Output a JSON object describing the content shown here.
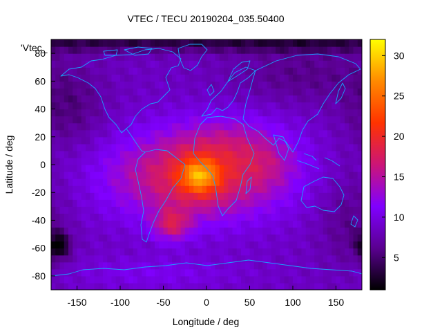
{
  "chart_data": {
    "type": "heatmap",
    "title": "VTEC / TECU 20190204_035.50400",
    "xlabel": "Longitude / deg",
    "ylabel": "Latitude / deg",
    "legend_label": "'Vtec_",
    "xlim": [
      -180,
      180
    ],
    "ylim": [
      -90,
      90
    ],
    "x_ticks": [
      -150,
      -100,
      -50,
      0,
      50,
      100,
      150
    ],
    "y_ticks": [
      -80,
      -60,
      -40,
      -20,
      0,
      20,
      40,
      60,
      80
    ],
    "colorbar": {
      "range": [
        1,
        32
      ],
      "ticks": [
        5,
        10,
        15,
        20,
        25,
        30
      ],
      "palette": [
        "#000000",
        "#5a0090",
        "#8000ff",
        "#cc1577",
        "#ff3300",
        "#ff8a00",
        "#ffff00"
      ]
    },
    "grid": false,
    "base_level": 8.5,
    "features": [
      {
        "lon": -10,
        "lat": -8,
        "sigma_lon": 70,
        "sigma_lat": 22,
        "amp": 10.5
      },
      {
        "lon": 30,
        "lat": 18,
        "sigma_lon": 45,
        "sigma_lat": 14,
        "amp": 3
      },
      {
        "lon": -8,
        "lat": -8,
        "sigma_lon": 16,
        "sigma_lat": 9,
        "amp": 10
      },
      {
        "lon": -40,
        "lat": -43,
        "sigma_lon": 15,
        "sigma_lat": 8,
        "amp": 7
      },
      {
        "lon": 70,
        "lat": 0,
        "sigma_lon": 25,
        "sigma_lat": 12,
        "amp": 2
      },
      {
        "lon": -172,
        "lat": -58,
        "sigma_lon": 10,
        "sigma_lat": 7,
        "amp": -7
      },
      {
        "lon": -160,
        "lat": 40,
        "sigma_lon": 30,
        "sigma_lat": 20,
        "amp": -3
      },
      {
        "lon": 110,
        "lat": 65,
        "sigma_lon": 60,
        "sigma_lat": 15,
        "amp": -2.5
      },
      {
        "lon": 165,
        "lat": -40,
        "sigma_lon": 25,
        "sigma_lat": 25,
        "amp": -2.5
      },
      {
        "lon": 0,
        "lat": 88,
        "sigma_lon": 400,
        "sigma_lat": 5,
        "amp": -5
      },
      {
        "lon": -60,
        "lat": -78,
        "sigma_lon": 70,
        "sigma_lat": 8,
        "amp": 2
      }
    ]
  }
}
